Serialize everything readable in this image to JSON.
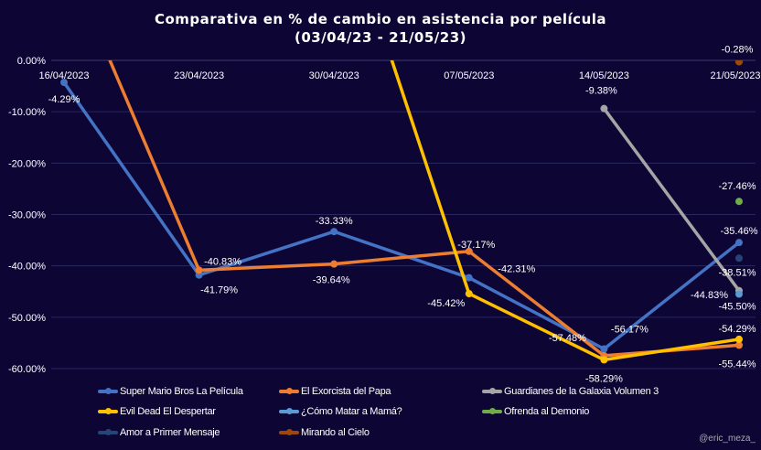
{
  "chart_data": {
    "type": "line",
    "title": "Comparativa en % de cambio en asistencia  por película",
    "subtitle": "(03/04/23  - 21/05/23)",
    "xlabel": "",
    "ylabel": "",
    "x": [
      "16/04/2023",
      "23/04/2023",
      "30/04/2023",
      "07/05/2023",
      "14/05/2023",
      "21/05/2023"
    ],
    "ylim": [
      -60,
      0
    ],
    "yticks": [
      "0.00%",
      "-10.00%",
      "-20.00%",
      "-30.00%",
      "-40.00%",
      "-50.00%",
      "-60.00%"
    ],
    "ytick_values": [
      0,
      -10,
      -20,
      -30,
      -40,
      -50,
      -60
    ],
    "grid": true,
    "legend_position": "bottom",
    "series": [
      {
        "name": "Super Mario Bros La Película",
        "color": "#4472c4",
        "values": [
          -4.29,
          -41.79,
          -33.33,
          -42.31,
          -56.17,
          -35.46
        ],
        "labels": [
          "-4.29%",
          "-41.79%",
          "-33.33%",
          "-42.31%",
          "-56.17%",
          "-35.46%"
        ]
      },
      {
        "name": "El Exorcista del Papa",
        "color": "#ed7d31",
        "values": [
          21,
          -40.83,
          -39.64,
          -37.17,
          -57.48,
          -55.44
        ],
        "labels": [
          null,
          "-40.83%",
          "-39.64%",
          "-37.17%",
          "-57.48%",
          "-55.44%"
        ]
      },
      {
        "name": "Guardianes de la Galaxia Volumen 3",
        "color": "#a5a5a5",
        "values": [
          null,
          null,
          null,
          null,
          -9.38,
          -44.83
        ],
        "labels": [
          null,
          null,
          null,
          null,
          "-9.38%",
          "-44.83%"
        ]
      },
      {
        "name": "Evil Dead El Despertar",
        "color": "#ffc000",
        "values": [
          null,
          null,
          34,
          -45.42,
          -58.29,
          -54.29
        ],
        "labels": [
          null,
          null,
          null,
          "-45.42%",
          "-58.29%",
          "-54.29%"
        ]
      },
      {
        "name": "¿Cómo Matar a Mamá?",
        "color": "#5b9bd5",
        "values": [
          null,
          null,
          null,
          null,
          null,
          -45.5
        ],
        "labels": [
          null,
          null,
          null,
          null,
          null,
          "-45.50%"
        ]
      },
      {
        "name": "Ofrenda al Demonio",
        "color": "#70ad47",
        "values": [
          null,
          null,
          null,
          null,
          null,
          -27.46
        ],
        "labels": [
          null,
          null,
          null,
          null,
          null,
          "-27.46%"
        ]
      },
      {
        "name": "Amor a Primer Mensaje",
        "color": "#264478",
        "values": [
          null,
          null,
          null,
          null,
          null,
          -38.51
        ],
        "labels": [
          null,
          null,
          null,
          null,
          null,
          "-38.51%"
        ]
      },
      {
        "name": "Mirando al Cielo",
        "color": "#9e480e",
        "values": [
          null,
          null,
          null,
          null,
          null,
          -0.28
        ],
        "labels": [
          null,
          null,
          null,
          null,
          null,
          "-0.28%"
        ]
      }
    ]
  },
  "watermark": "@eric_meza_"
}
